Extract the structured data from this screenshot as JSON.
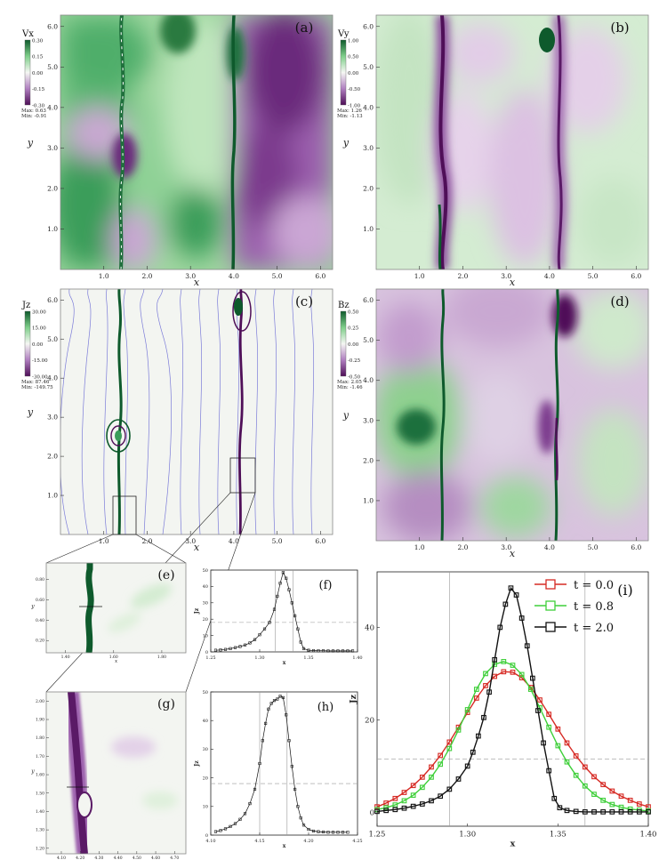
{
  "colors": {
    "green_dark": "#0e5a2c",
    "green_mid": "#7fcf8a",
    "green_light": "#cdebc9",
    "white": "#f5f7f3",
    "purple_light": "#e1c9e6",
    "purple_mid": "#b07fc0",
    "purple_dark": "#4f0f58",
    "field_line": "#6f6fd6",
    "series_red": "#d62a24",
    "series_green": "#3fcf3a",
    "series_black": "#111111"
  },
  "chart_data": [
    {
      "type": "heatmap",
      "panel": "(a)",
      "xlabel": "x",
      "ylabel": "y",
      "xticks": [
        "1.0",
        "2.0",
        "3.0",
        "4.0",
        "5.0",
        "6.0"
      ],
      "yticks": [
        "1.0",
        "2.0",
        "3.0",
        "4.0",
        "5.0",
        "6.0"
      ],
      "xlim": [
        0,
        6.28
      ],
      "ylim": [
        0,
        6.28
      ],
      "colorbar": {
        "title": "Vx",
        "ticks": [
          "0.30",
          "0.15",
          "0.00",
          "-0.15",
          "-0.30"
        ],
        "max_label": "Max: 0.63",
        "min_label": "Min: -0.91"
      }
    },
    {
      "type": "heatmap",
      "panel": "(b)",
      "xlabel": "x",
      "ylabel": "y",
      "xticks": [
        "1.0",
        "2.0",
        "3.0",
        "4.0",
        "5.0",
        "6.0"
      ],
      "yticks": [
        "1.0",
        "2.0",
        "3.0",
        "4.0",
        "5.0",
        "6.0"
      ],
      "xlim": [
        0,
        6.28
      ],
      "ylim": [
        0,
        6.28
      ],
      "colorbar": {
        "title": "Vy",
        "ticks": [
          "1.00",
          "0.50",
          "0.00",
          "-0.50",
          "-1.00"
        ],
        "max_label": "Max: 1.26",
        "min_label": "Min: -1.13"
      }
    },
    {
      "type": "heatmap",
      "panel": "(c)",
      "xlabel": "x",
      "ylabel": "y",
      "xticks": [
        "1.0",
        "2.0",
        "3.0",
        "4.0",
        "5.0",
        "6.0"
      ],
      "yticks": [
        "1.0",
        "2.0",
        "3.0",
        "4.0",
        "5.0",
        "6.0"
      ],
      "xlim": [
        0,
        6.28
      ],
      "ylim": [
        0,
        6.28
      ],
      "colorbar": {
        "title": "Jz",
        "ticks": [
          "30.00",
          "15.00",
          "0.00",
          "-15.00",
          "-30.00"
        ],
        "max_label": "Max: 87.46",
        "min_label": "Min: -149.75"
      }
    },
    {
      "type": "heatmap",
      "panel": "(d)",
      "xlabel": "x",
      "ylabel": "y",
      "xticks": [
        "1.0",
        "2.0",
        "3.0",
        "4.0",
        "5.0",
        "6.0"
      ],
      "yticks": [
        "1.0",
        "2.0",
        "3.0",
        "4.0",
        "5.0",
        "6.0"
      ],
      "xlim": [
        0,
        6.28
      ],
      "ylim": [
        0,
        6.28
      ],
      "colorbar": {
        "title": "Bz",
        "ticks": [
          "0.50",
          "0.25",
          "0.00",
          "-0.25",
          "-0.50"
        ],
        "max_label": "Max: 2.05",
        "min_label": "Min: -1.46"
      }
    },
    {
      "type": "heatmap",
      "panel": "(e)",
      "xlabel": "x",
      "ylabel": "y",
      "xticks": [
        "1.40",
        "1.60",
        "1.80"
      ],
      "yticks": [
        "0.20",
        "0.40",
        "0.60",
        "0.80"
      ]
    },
    {
      "type": "line",
      "panel": "(f)",
      "xlabel": "x",
      "ylabel": "Jz",
      "xticks": [
        "1.25",
        "1.30",
        "1.35",
        "1.40"
      ],
      "yticks": [
        "0",
        "10",
        "20",
        "30",
        "40",
        "50"
      ],
      "xlim": [
        1.25,
        1.4
      ],
      "ylim": [
        0,
        50
      ],
      "threshold": 18,
      "vlines": [
        1.316,
        1.334
      ],
      "x": [
        1.255,
        1.26,
        1.265,
        1.27,
        1.275,
        1.28,
        1.285,
        1.29,
        1.295,
        1.3,
        1.305,
        1.31,
        1.315,
        1.318,
        1.321,
        1.324,
        1.327,
        1.33,
        1.333,
        1.336,
        1.339,
        1.342,
        1.345,
        1.35,
        1.355,
        1.36,
        1.365,
        1.37,
        1.375,
        1.38,
        1.385,
        1.39,
        1.395
      ],
      "values": [
        1.0,
        1.2,
        1.5,
        2.0,
        2.6,
        3.3,
        4.2,
        5.5,
        7.5,
        10.5,
        14.0,
        18.0,
        26.0,
        34.0,
        42.0,
        48.5,
        45.0,
        38.0,
        30.0,
        22.0,
        14.0,
        6.0,
        2.0,
        1.0,
        0.8,
        0.7,
        0.7,
        0.6,
        0.6,
        0.6,
        0.6,
        0.6,
        0.6
      ]
    },
    {
      "type": "heatmap",
      "panel": "(g)",
      "xlabel": "x",
      "ylabel": "y",
      "xticks": [
        "4.10",
        "4.20",
        "4.30",
        "4.40",
        "4.50",
        "4.60",
        "4.70"
      ],
      "yticks": [
        "1.20",
        "1.30",
        "1.40",
        "1.50",
        "1.60",
        "1.70",
        "1.80",
        "1.90",
        "2.00"
      ]
    },
    {
      "type": "line",
      "panel": "(h)",
      "xlabel": "x",
      "ylabel": "Jz",
      "xticks": [
        "4.10",
        "4.15",
        "4.20",
        "4.25"
      ],
      "yticks": [
        "0",
        "10",
        "20",
        "30",
        "40",
        "50"
      ],
      "xlim": [
        4.1,
        4.25
      ],
      "ylim": [
        0,
        50
      ],
      "threshold": 18,
      "vlines": [
        4.15,
        4.178
      ],
      "x": [
        4.105,
        4.11,
        4.115,
        4.12,
        4.125,
        4.13,
        4.135,
        4.14,
        4.145,
        4.15,
        4.153,
        4.156,
        4.159,
        4.162,
        4.165,
        4.168,
        4.171,
        4.174,
        4.177,
        4.18,
        4.183,
        4.186,
        4.189,
        4.192,
        4.195,
        4.2,
        4.205,
        4.21,
        4.215,
        4.22,
        4.225,
        4.23,
        4.235,
        4.24
      ],
      "values": [
        1.2,
        1.6,
        2.2,
        3.0,
        4.0,
        5.5,
        7.5,
        11.0,
        16.0,
        25.0,
        33.0,
        39.0,
        44.0,
        46.0,
        47.0,
        47.5,
        48.5,
        48.0,
        42.0,
        33.0,
        24.0,
        16.0,
        10.0,
        6.0,
        3.5,
        2.0,
        1.4,
        1.2,
        1.1,
        1.0,
        1.0,
        1.0,
        1.0,
        1.0
      ]
    },
    {
      "type": "line",
      "panel": "(i)",
      "xlabel": "x",
      "ylabel": "Jz",
      "xticks": [
        "1.25",
        "1.30",
        "1.35",
        "1.40"
      ],
      "yticks": [
        "0",
        "20",
        "40"
      ],
      "xlim": [
        1.25,
        1.4
      ],
      "ylim": [
        -3,
        52
      ],
      "threshold": 11.5,
      "vlines": [
        1.29,
        1.365
      ],
      "legend_position": "top-right",
      "series": [
        {
          "name": "t = 0.0",
          "x": [
            1.25,
            1.255,
            1.26,
            1.265,
            1.27,
            1.275,
            1.28,
            1.285,
            1.29,
            1.295,
            1.3,
            1.305,
            1.31,
            1.315,
            1.32,
            1.325,
            1.33,
            1.335,
            1.34,
            1.345,
            1.35,
            1.355,
            1.36,
            1.365,
            1.37,
            1.375,
            1.38,
            1.385,
            1.39,
            1.395,
            1.4
          ],
          "values": [
            1.2,
            2.0,
            3.0,
            4.3,
            5.8,
            7.6,
            9.8,
            12.3,
            15.2,
            18.4,
            21.6,
            24.7,
            27.4,
            29.4,
            30.4,
            30.3,
            29.1,
            27.0,
            24.3,
            21.2,
            18.0,
            15.0,
            12.2,
            9.8,
            7.7,
            6.0,
            4.6,
            3.5,
            2.6,
            1.8,
            1.2
          ]
        },
        {
          "name": "t = 0.8",
          "x": [
            1.25,
            1.255,
            1.26,
            1.265,
            1.27,
            1.275,
            1.28,
            1.285,
            1.29,
            1.295,
            1.3,
            1.305,
            1.31,
            1.315,
            1.32,
            1.325,
            1.33,
            1.335,
            1.34,
            1.345,
            1.35,
            1.355,
            1.36,
            1.365,
            1.37,
            1.375,
            1.38,
            1.385,
            1.39,
            1.395,
            1.4
          ],
          "values": [
            0.6,
            1.0,
            1.6,
            2.5,
            3.7,
            5.4,
            7.6,
            10.4,
            13.8,
            17.8,
            22.2,
            26.6,
            30.0,
            32.0,
            32.6,
            31.8,
            29.8,
            26.6,
            22.6,
            18.4,
            14.4,
            10.9,
            8.0,
            5.7,
            3.9,
            2.6,
            1.7,
            1.1,
            0.7,
            0.5,
            0.3
          ]
        },
        {
          "name": "t = 2.0",
          "x": [
            1.25,
            1.255,
            1.26,
            1.265,
            1.27,
            1.275,
            1.28,
            1.285,
            1.29,
            1.295,
            1.3,
            1.303,
            1.306,
            1.309,
            1.312,
            1.315,
            1.318,
            1.321,
            1.324,
            1.327,
            1.33,
            1.333,
            1.336,
            1.339,
            1.342,
            1.345,
            1.348,
            1.351,
            1.355,
            1.36,
            1.365,
            1.37,
            1.375,
            1.38,
            1.385,
            1.39,
            1.395,
            1.4
          ],
          "values": [
            0.2,
            0.4,
            0.6,
            0.9,
            1.3,
            1.8,
            2.5,
            3.5,
            5.0,
            7.2,
            10.0,
            13.0,
            16.5,
            20.5,
            26.0,
            33.0,
            40.0,
            45.0,
            48.5,
            47.0,
            42.0,
            36.0,
            29.0,
            22.0,
            15.0,
            9.0,
            3.0,
            1.0,
            0.4,
            0.2,
            0.1,
            0.1,
            0.1,
            0.1,
            0.1,
            0.1,
            0.1,
            0.1
          ]
        }
      ]
    }
  ]
}
